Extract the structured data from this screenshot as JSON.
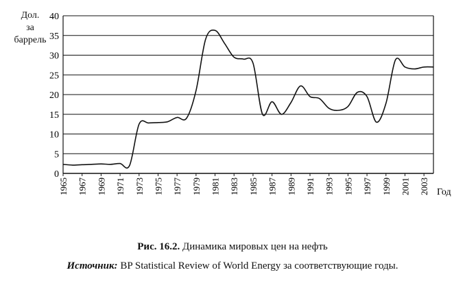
{
  "chart_data": {
    "type": "line",
    "ylabel_lines": [
      "Дол.",
      "за",
      "баррель"
    ],
    "xlabel": "Год",
    "ylim": [
      0,
      40
    ],
    "y_ticks": [
      0,
      5,
      10,
      15,
      20,
      25,
      30,
      35,
      40
    ],
    "x_range": [
      1965,
      2004
    ],
    "x_tick_labels": [
      "1965",
      "1967",
      "1969",
      "1971",
      "1973",
      "1975",
      "1977",
      "1979",
      "1981",
      "1983",
      "1985",
      "1987",
      "1989",
      "1991",
      "1993",
      "1995",
      "1997",
      "1999",
      "2001",
      "2003"
    ],
    "grid": true,
    "series": [
      {
        "x": [
          1965,
          1966,
          1967,
          1968,
          1969,
          1970,
          1971,
          1972,
          1973,
          1974,
          1975,
          1976,
          1977,
          1978,
          1979,
          1980,
          1981,
          1982,
          1983,
          1984,
          1985,
          1986,
          1987,
          1988,
          1989,
          1990,
          1991,
          1992,
          1993,
          1994,
          1995,
          1996,
          1997,
          1998,
          1999,
          2000,
          2001,
          2002,
          2003,
          2004
        ],
        "values": [
          2.3,
          2.1,
          2.2,
          2.3,
          2.4,
          2.3,
          2.5,
          2.0,
          12.5,
          12.8,
          12.9,
          13.1,
          14.2,
          14.0,
          21.0,
          34.0,
          36.3,
          33.0,
          29.5,
          29.0,
          28.0,
          15.0,
          18.2,
          15.0,
          18.0,
          22.2,
          19.5,
          19.0,
          16.5,
          16.0,
          17.0,
          20.6,
          19.5,
          13.0,
          17.8,
          28.8,
          27.0,
          26.5,
          27.0,
          27.0
        ]
      }
    ]
  },
  "caption": {
    "fig_label": "Рис. 16.2.",
    "fig_text": " Динамика мировых цен на нефть",
    "source_label": "Источник:",
    "source_text": " BP Statistical Review of World Energy за соответствующие годы."
  }
}
